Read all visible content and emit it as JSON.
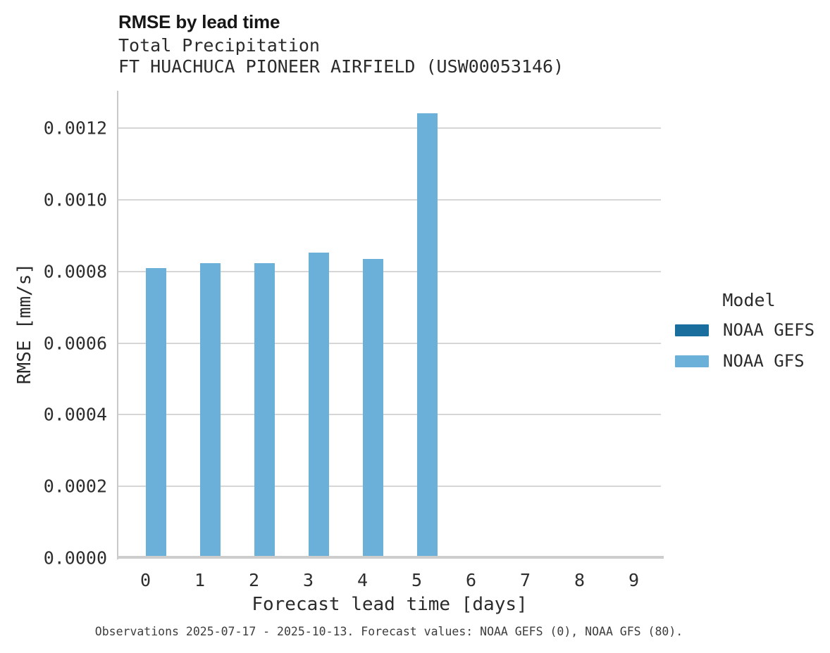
{
  "header": {
    "title": "RMSE by lead time",
    "subtitle_variable": "Total Precipitation",
    "subtitle_station": "FT HUACHUCA PIONEER AIRFIELD (USW00053146)"
  },
  "chart_data": {
    "type": "bar",
    "title": "RMSE by lead time",
    "subtitle": [
      "Total Precipitation",
      "FT HUACHUCA PIONEER AIRFIELD (USW00053146)"
    ],
    "xlabel": "Forecast lead time [days]",
    "ylabel": "RMSE [mm/s]",
    "categories": [
      "0",
      "1",
      "2",
      "3",
      "4",
      "5",
      "6",
      "7",
      "8",
      "9"
    ],
    "series": [
      {
        "name": "NOAA GEFS",
        "color": "#1a6e9e",
        "values": [
          0,
          0,
          0,
          0,
          0,
          0,
          0,
          0,
          0,
          0
        ]
      },
      {
        "name": "NOAA GFS",
        "color": "#6bb0d9",
        "values": [
          0.000807,
          0.000822,
          0.000822,
          0.000852,
          0.000833,
          0.00124,
          null,
          null,
          null,
          null
        ]
      }
    ],
    "yticks": [
      0,
      0.0002,
      0.0004,
      0.0006,
      0.0008,
      0.001,
      0.0012
    ],
    "ytick_labels": [
      "0.0000",
      "0.0002",
      "0.0004",
      "0.0006",
      "0.0008",
      "0.0010",
      "0.0012"
    ],
    "ylim": [
      0,
      0.001305
    ],
    "grid": "horizontal",
    "legend_title": "Model",
    "legend_position": "right"
  },
  "caption": {
    "text": "Observations 2025-07-17 - 2025-10-13. Forecast values: NOAA GEFS (0), NOAA GFS (80)."
  },
  "colors": {
    "bar_gefs": "#1a6e9e",
    "bar_gfs": "#6bb0d9",
    "gridline": "#d6d6d6",
    "axis_line": "#cdcdcd",
    "text": "#2b2b2b"
  }
}
